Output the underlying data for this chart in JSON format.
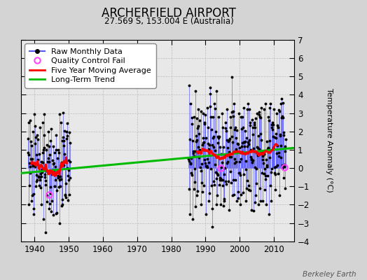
{
  "title": "ARCHERFIELD AIRPORT",
  "subtitle": "27.569 S, 153.004 E (Australia)",
  "ylabel": "Temperature Anomaly (°C)",
  "credit": "Berkeley Earth",
  "xlim": [
    1936,
    2016
  ],
  "ylim": [
    -4,
    7
  ],
  "yticks": [
    -4,
    -3,
    -2,
    -1,
    0,
    1,
    2,
    3,
    4,
    5,
    6,
    7
  ],
  "xticks": [
    1940,
    1950,
    1960,
    1970,
    1980,
    1990,
    2000,
    2010
  ],
  "bg_color": "#d4d4d4",
  "plot_bg": "#e8e8e8",
  "raw_color": "#5555ff",
  "dot_color": "#000000",
  "ma_color": "#ff0000",
  "trend_color": "#00bb00",
  "qc_color": "#ff44ff",
  "trend_x": [
    1936,
    2016
  ],
  "trend_y": [
    -0.28,
    1.1
  ]
}
